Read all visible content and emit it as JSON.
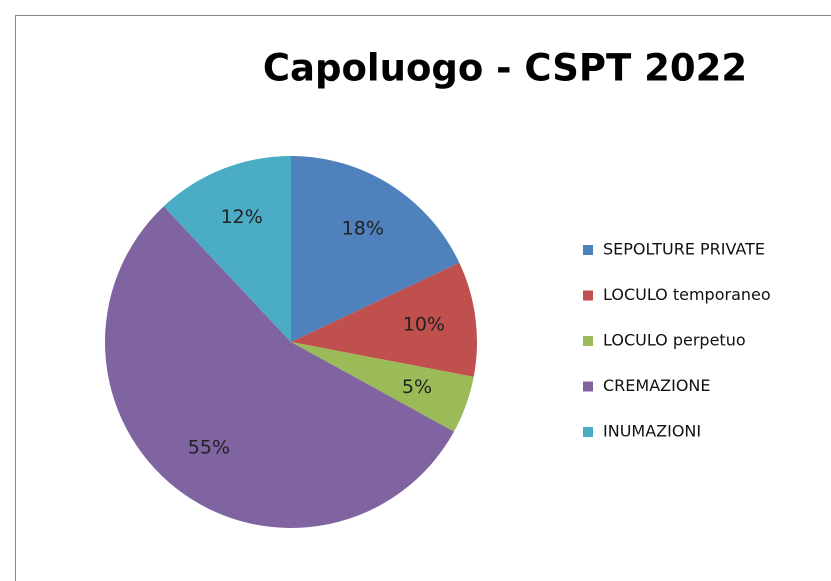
{
  "chart_data": {
    "type": "pie",
    "title": "Capoluogo - CSPT 2022",
    "categories": [
      "SEPOLTURE PRIVATE",
      "LOCULO temporaneo",
      "LOCULO perpetuo",
      "CREMAZIONE",
      "INUMAZIONI"
    ],
    "values": [
      18,
      10,
      5,
      55,
      12
    ],
    "value_labels": [
      "18%",
      "10%",
      "5%",
      "55%",
      "12%"
    ],
    "colors": [
      "#4f81bd",
      "#c0504d",
      "#9bbb59",
      "#8064a2",
      "#4bacc6"
    ],
    "legend": "right"
  }
}
